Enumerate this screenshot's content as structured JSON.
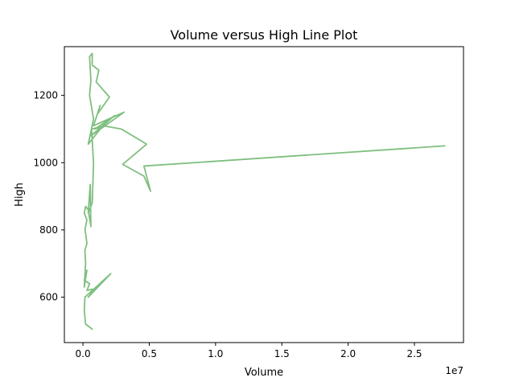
{
  "chart_data": {
    "type": "line",
    "title": "Volume versus High Line Plot",
    "xlabel": "Volume",
    "ylabel": "High",
    "x_offset_label": "1e7",
    "x_scale": 10000000,
    "xlim": [
      -1400000,
      28700000
    ],
    "ylim": [
      465,
      1345
    ],
    "x_ticks": [
      0,
      5000000,
      10000000,
      15000000,
      20000000,
      25000000
    ],
    "x_tick_labels": [
      "0.0",
      "0.5",
      "1.0",
      "1.5",
      "2.0",
      "2.5"
    ],
    "y_ticks": [
      600,
      800,
      1000,
      1200
    ],
    "y_tick_labels": [
      "600",
      "800",
      "1000",
      "1200"
    ],
    "grid": false,
    "line_color": "#7fbf7f",
    "series": [
      {
        "name": "",
        "points": [
          [
            700000,
            505
          ],
          [
            200000,
            520
          ],
          [
            100000,
            560
          ],
          [
            150000,
            600
          ],
          [
            2100000,
            670
          ],
          [
            400000,
            600
          ],
          [
            900000,
            625
          ],
          [
            300000,
            620
          ],
          [
            500000,
            640
          ],
          [
            100000,
            650
          ],
          [
            300000,
            680
          ],
          [
            100000,
            630
          ],
          [
            200000,
            700
          ],
          [
            150000,
            740
          ],
          [
            300000,
            760
          ],
          [
            200000,
            790
          ],
          [
            150000,
            800
          ],
          [
            300000,
            830
          ],
          [
            100000,
            850
          ],
          [
            200000,
            870
          ],
          [
            400000,
            860
          ],
          [
            600000,
            810
          ],
          [
            550000,
            935
          ],
          [
            400000,
            850
          ],
          [
            700000,
            880
          ],
          [
            800000,
            1000
          ],
          [
            650000,
            1100
          ],
          [
            1700000,
            1110
          ],
          [
            900000,
            1100
          ],
          [
            2400000,
            1140
          ],
          [
            600000,
            1080
          ],
          [
            3100000,
            1150
          ],
          [
            800000,
            1110
          ],
          [
            1300000,
            1170
          ],
          [
            1100000,
            1145
          ],
          [
            2000000,
            1195
          ],
          [
            1000000,
            1240
          ],
          [
            1200000,
            1275
          ],
          [
            700000,
            1290
          ],
          [
            700000,
            1325
          ],
          [
            500000,
            1315
          ],
          [
            600000,
            1245
          ],
          [
            500000,
            1200
          ],
          [
            800000,
            1130
          ],
          [
            400000,
            1055
          ],
          [
            1500000,
            1110
          ],
          [
            2900000,
            1100
          ],
          [
            4800000,
            1055
          ],
          [
            3000000,
            995
          ],
          [
            4600000,
            960
          ],
          [
            5100000,
            915
          ],
          [
            4600000,
            990
          ],
          [
            27300000,
            1050
          ]
        ]
      }
    ]
  }
}
